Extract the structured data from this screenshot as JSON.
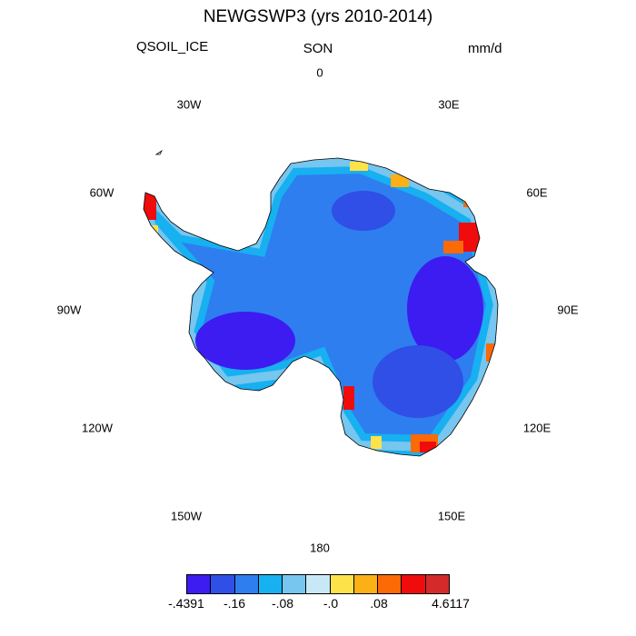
{
  "title": "NEWGSWP3 (yrs 2010-2014)",
  "variable": "QSOIL_ICE",
  "season": "SON",
  "units": "mm/d",
  "longitude_labels": {
    "lon_0": "0",
    "lon_30e": "30E",
    "lon_60e": "60E",
    "lon_90e": "90E",
    "lon_120e": "120E",
    "lon_150e": "150E",
    "lon_180": "180",
    "lon_150w": "150W",
    "lon_120w": "120W",
    "lon_90w": "90W",
    "lon_60w": "60W",
    "lon_30w": "30W"
  },
  "colorbar": {
    "colors": [
      "#3c1cf0",
      "#2f4fe6",
      "#2e7ef0",
      "#17b0f0",
      "#76c6ef",
      "#c8e8f7",
      "#fde24a",
      "#fbb016",
      "#fc6a06",
      "#f00c0c",
      "#d42a2a"
    ],
    "labels": [
      "-.4391",
      "-.16",
      "-.08",
      "-.0",
      ".08",
      "4.6117"
    ]
  },
  "map": {
    "projection": "south polar stereographic",
    "region": "Antarctica",
    "field_description_colors": {
      "interior_low": "#2f4fe6",
      "interior_mid": "#2e7ef0",
      "interior_high": "#17b0f0",
      "coast_positive": "#fc6a06",
      "coast_max": "#f00c0c"
    }
  }
}
